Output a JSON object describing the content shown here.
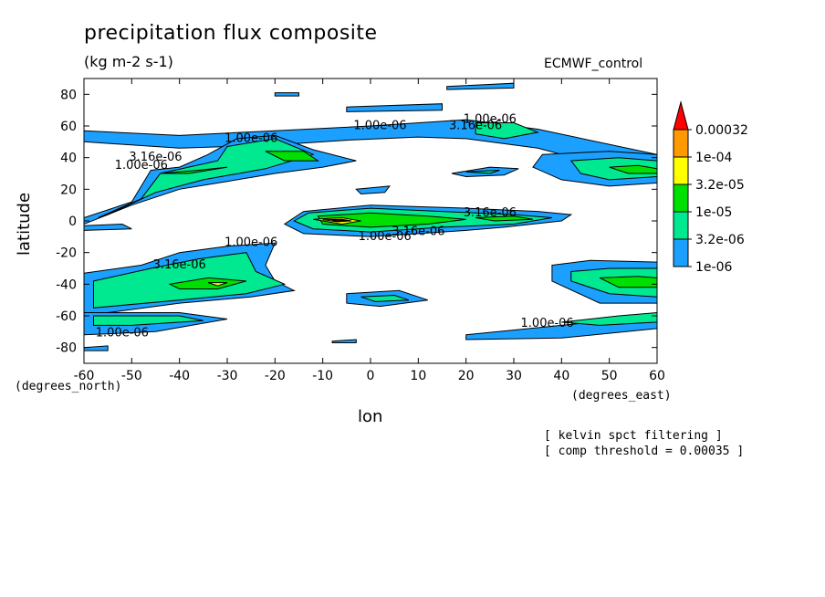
{
  "header": {
    "title": "precipitation flux composite",
    "units": "(kg m-2 s-1)",
    "model": "ECMWF_control"
  },
  "axes": {
    "xlabel": "lon",
    "ylabel": "latitude",
    "yunit": "(degrees_north)",
    "xunit": "(degrees_east)"
  },
  "notes": {
    "filter": "[ kelvin spct filtering ]",
    "threshold": "[ comp threshold = 0.00035 ]"
  },
  "chart_data": {
    "type": "heatmap",
    "title": "precipitation flux composite",
    "xlabel": "lon",
    "ylabel": "latitude",
    "xlim": [
      -60,
      60
    ],
    "ylim": [
      -90,
      90
    ],
    "x_ticks": [
      -60,
      -50,
      -40,
      -30,
      -20,
      -10,
      0,
      10,
      20,
      30,
      40,
      50,
      60
    ],
    "y_ticks": [
      80,
      60,
      40,
      20,
      0,
      -20,
      -40,
      -60,
      -80
    ],
    "legend": {
      "placement": "right",
      "levels": [
        "0.00032",
        "1e-04",
        "3.2e-05",
        "1e-05",
        "3.2e-06",
        "1e-06"
      ],
      "colors": [
        "#ff0000",
        "#ff9900",
        "#ffff00",
        "#00e000",
        "#00e890",
        "#1ca0ff"
      ]
    },
    "contour_labels": [
      {
        "text": "1.00e-06",
        "lon": 2,
        "lat": 58
      },
      {
        "text": "1.00e-06",
        "lon": 25,
        "lat": 62
      },
      {
        "text": "3.16e-06",
        "lon": 22,
        "lat": 58
      },
      {
        "text": "1.00e-06",
        "lon": -25,
        "lat": 50
      },
      {
        "text": "3.16e-06",
        "lon": -45,
        "lat": 38
      },
      {
        "text": "1.00e-06",
        "lon": -48,
        "lat": 33
      },
      {
        "text": "1.00e-06",
        "lon": -25,
        "lat": -16
      },
      {
        "text": "3.16e-06",
        "lon": -40,
        "lat": -30
      },
      {
        "text": "1.00e-06",
        "lon": -52,
        "lat": -73
      },
      {
        "text": "1.00e-06",
        "lon": 3,
        "lat": -12
      },
      {
        "text": "3.16e-06",
        "lon": 10,
        "lat": -9
      },
      {
        "text": "3.16e-06",
        "lon": 25,
        "lat": 3
      },
      {
        "text": "1.00e-06",
        "lon": 37,
        "lat": -67
      }
    ]
  }
}
